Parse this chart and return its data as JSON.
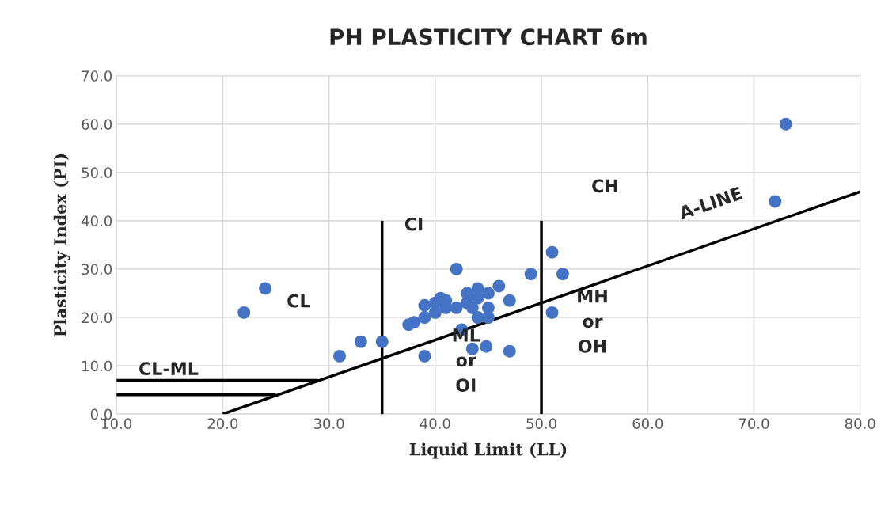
{
  "chart_data": {
    "type": "scatter",
    "title": "PH PLASTICITY CHART 6m",
    "xlabel": "Liquid Limit (LL)",
    "ylabel": "Plasticity Index (PI)",
    "xlim": [
      10,
      80
    ],
    "ylim": [
      0,
      70
    ],
    "xticks": [
      {
        "value": 10,
        "label": "10.0"
      },
      {
        "value": 20,
        "label": "20.0"
      },
      {
        "value": 30,
        "label": "30.0"
      },
      {
        "value": 40,
        "label": "40.0"
      },
      {
        "value": 50,
        "label": "50.0"
      },
      {
        "value": 60,
        "label": "60.0"
      },
      {
        "value": 70,
        "label": "70.0"
      },
      {
        "value": 80,
        "label": "80.0"
      }
    ],
    "yticks": [
      {
        "value": 0,
        "label": "0.0"
      },
      {
        "value": 10,
        "label": "10.0"
      },
      {
        "value": 20,
        "label": "20.0"
      },
      {
        "value": 30,
        "label": "30.0"
      },
      {
        "value": 40,
        "label": "40.0"
      },
      {
        "value": 50,
        "label": "50.0"
      },
      {
        "value": 60,
        "label": "60.0"
      },
      {
        "value": 70,
        "label": "70.0"
      }
    ],
    "grid": true,
    "series": [
      {
        "type": "line",
        "color": "#000000",
        "x": [
          20,
          80
        ],
        "values": [
          0,
          46
        ]
      },
      {
        "type": "line",
        "color": "#000000",
        "x": [
          10,
          29
        ],
        "values": [
          7,
          7
        ]
      },
      {
        "type": "line",
        "color": "#000000",
        "x": [
          10,
          25
        ],
        "values": [
          4,
          4
        ]
      },
      {
        "type": "line",
        "color": "#000000",
        "x": [
          35,
          35
        ],
        "values": [
          0,
          40
        ]
      },
      {
        "type": "line",
        "color": "#000000",
        "x": [
          50,
          50
        ],
        "values": [
          0,
          40
        ]
      },
      {
        "color": "#4472c4",
        "marker": "circle",
        "x": [
          22,
          24,
          31,
          33,
          35,
          37.5,
          38,
          39,
          39,
          39,
          40,
          40,
          40.5,
          41,
          41,
          42,
          42,
          42.5,
          43,
          43,
          43.5,
          43.5,
          44,
          44,
          44,
          45,
          45,
          45,
          44.8,
          46,
          47,
          47,
          49,
          51,
          51,
          52,
          72,
          73
        ],
        "values": [
          21,
          26,
          12,
          15,
          15,
          18.5,
          19,
          12,
          20,
          22.5,
          23,
          21,
          24,
          23.5,
          22,
          30,
          22,
          17.5,
          25,
          23,
          13.5,
          22,
          26,
          24,
          20,
          25,
          22,
          20,
          14,
          26.5,
          23.5,
          13,
          29,
          33.5,
          21,
          29,
          44,
          60
        ]
      }
    ],
    "annotations": [
      "CL",
      "CL-ML",
      "CI",
      "ML\nor\nOI",
      "CH",
      "MH\nor\nOH",
      "A-LINE"
    ]
  }
}
